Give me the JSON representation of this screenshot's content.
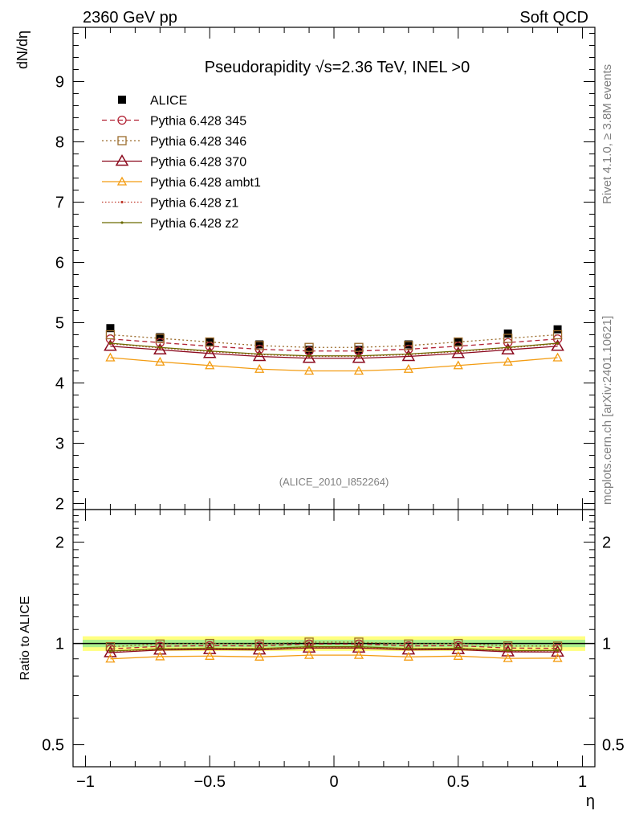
{
  "header": {
    "left": "2360 GeV pp",
    "right": "Soft QCD"
  },
  "side_labels": {
    "rivet": "Rivet 4.1.0, ≥ 3.8M events",
    "mcplots": "mcplots.cern.ch [arXiv:2401.10621]"
  },
  "watermark": "(ALICE_2010_I852264)",
  "chart_data": [
    {
      "type": "line",
      "title": "Pseudorapidity √s=2.36 TeV, INEL >0",
      "ylabel": "dN/dη",
      "xlabel": "η",
      "xlim": [
        -1.05,
        1.05
      ],
      "ylim": [
        1.9,
        9.9
      ],
      "yticks": [
        2,
        3,
        4,
        5,
        6,
        7,
        8,
        9
      ],
      "ytick_labels": [
        "2",
        "3",
        "4",
        "5",
        "6",
        "7",
        "8",
        "9"
      ],
      "x": [
        -0.9,
        -0.7,
        -0.5,
        -0.3,
        -0.1,
        0.1,
        0.3,
        0.5,
        0.7,
        0.9
      ],
      "series": [
        {
          "name": "ALICE",
          "color": "#000000",
          "marker": "square-filled",
          "line": "none",
          "values": [
            4.91,
            4.76,
            4.68,
            4.64,
            4.55,
            4.55,
            4.64,
            4.68,
            4.82,
            4.89
          ]
        },
        {
          "name": "Pythia 6.428 345",
          "color": "#b22234",
          "marker": "circle-open",
          "line": "dashed",
          "values": [
            4.73,
            4.67,
            4.61,
            4.56,
            4.53,
            4.53,
            4.56,
            4.61,
            4.67,
            4.73
          ]
        },
        {
          "name": "Pythia 6.428 346",
          "color": "#9c6c2c",
          "marker": "square-open",
          "line": "dotted",
          "values": [
            4.8,
            4.74,
            4.68,
            4.62,
            4.59,
            4.59,
            4.62,
            4.68,
            4.74,
            4.8
          ]
        },
        {
          "name": "Pythia 6.428 370",
          "color": "#8b0a1e",
          "marker": "triangle-open",
          "line": "solid",
          "values": [
            4.61,
            4.55,
            4.49,
            4.44,
            4.41,
            4.41,
            4.44,
            4.49,
            4.55,
            4.61
          ]
        },
        {
          "name": "Pythia 6.428 ambt1",
          "color": "#f39c12",
          "marker": "triangle-open-small",
          "line": "solid",
          "values": [
            4.42,
            4.35,
            4.29,
            4.23,
            4.2,
            4.2,
            4.23,
            4.29,
            4.35,
            4.42
          ]
        },
        {
          "name": "Pythia 6.428 z1",
          "color": "#c0392b",
          "marker": "dot",
          "line": "dotted",
          "values": [
            4.65,
            4.58,
            4.52,
            4.47,
            4.44,
            4.44,
            4.47,
            4.52,
            4.58,
            4.65
          ]
        },
        {
          "name": "Pythia 6.428 z2",
          "color": "#6b6b00",
          "marker": "dot",
          "line": "solid",
          "values": [
            4.66,
            4.59,
            4.53,
            4.48,
            4.45,
            4.45,
            4.48,
            4.53,
            4.59,
            4.66
          ]
        }
      ]
    },
    {
      "type": "line",
      "title": "",
      "ylabel": "Ratio to ALICE",
      "xlabel": "η",
      "xlim": [
        -1.05,
        1.05
      ],
      "ylim": [
        0.43,
        2.5
      ],
      "yscale": "log",
      "yticks": [
        0.5,
        1,
        2
      ],
      "ytick_labels": [
        "0.5",
        "1",
        "2"
      ],
      "xticks": [
        -1,
        -0.5,
        0,
        0.5,
        1
      ],
      "xtick_labels": [
        "−1",
        "−0.5",
        "0",
        "0.5",
        "1"
      ],
      "band": {
        "inner": [
          0.975,
          1.025
        ],
        "outer": [
          0.95,
          1.05
        ]
      },
      "x": [
        -0.9,
        -0.7,
        -0.5,
        -0.3,
        -0.1,
        0.1,
        0.3,
        0.5,
        0.7,
        0.9
      ],
      "series": [
        {
          "name": "Pythia 6.428 345",
          "values": [
            0.963,
            0.981,
            0.985,
            0.983,
            0.996,
            0.996,
            0.983,
            0.985,
            0.969,
            0.967
          ]
        },
        {
          "name": "Pythia 6.428 346",
          "values": [
            0.978,
            0.996,
            1.0,
            0.996,
            1.009,
            1.009,
            0.996,
            1.0,
            0.983,
            0.982
          ]
        },
        {
          "name": "Pythia 6.428 370",
          "values": [
            0.939,
            0.956,
            0.959,
            0.957,
            0.969,
            0.969,
            0.957,
            0.959,
            0.944,
            0.943
          ]
        },
        {
          "name": "Pythia 6.428 ambt1",
          "values": [
            0.9,
            0.914,
            0.917,
            0.912,
            0.923,
            0.923,
            0.912,
            0.917,
            0.903,
            0.904
          ]
        },
        {
          "name": "Pythia 6.428 z1",
          "values": [
            0.947,
            0.962,
            0.966,
            0.963,
            0.976,
            0.976,
            0.963,
            0.966,
            0.95,
            0.951
          ]
        },
        {
          "name": "Pythia 6.428 z2",
          "values": [
            0.949,
            0.964,
            0.968,
            0.966,
            0.978,
            0.978,
            0.966,
            0.968,
            0.952,
            0.953
          ]
        }
      ]
    }
  ]
}
